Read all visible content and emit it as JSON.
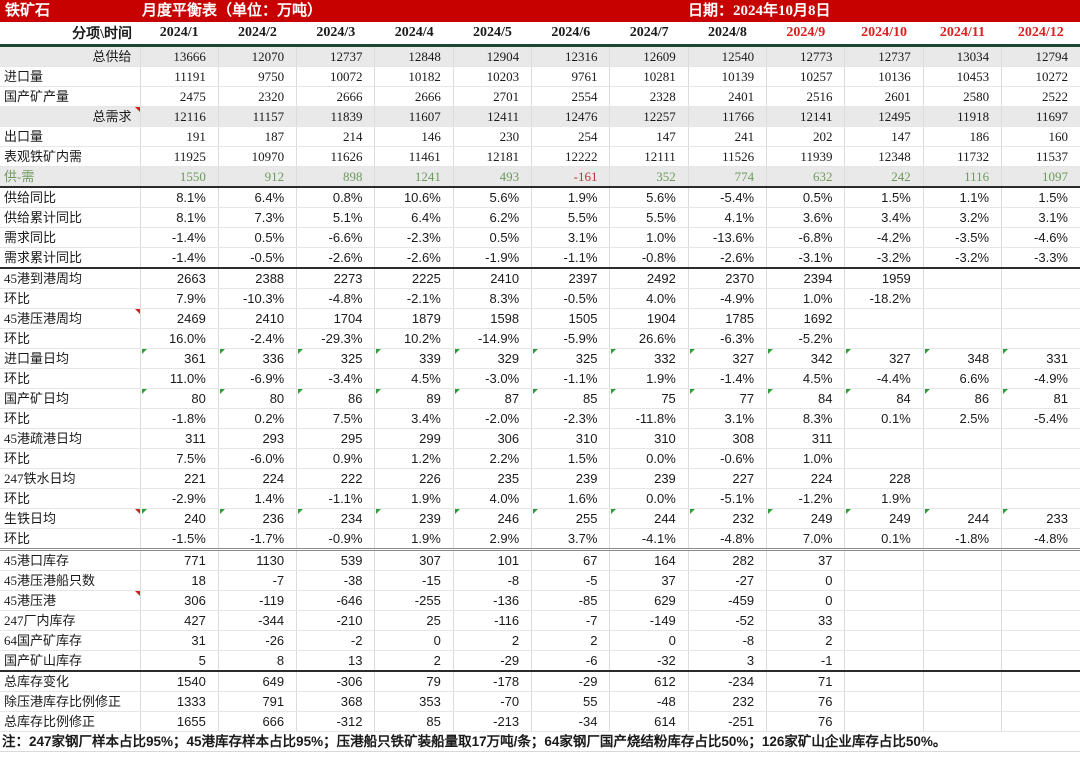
{
  "title_bar": {
    "product": "铁矿石",
    "table_title": "月度平衡表（单位：万吨）",
    "date_label": "日期：2024年10月8日"
  },
  "colors": {
    "bar_red": "#c70000",
    "month_red": "#d92121",
    "header_line": "#1e4635",
    "band_gray": "#e9e9e9",
    "green_text": "#6f9a5e",
    "negative_red": "#b03a3a"
  },
  "table": {
    "corner_label": "分项\\时间",
    "months": [
      "2024/1",
      "2024/2",
      "2024/3",
      "2024/4",
      "2024/5",
      "2024/6",
      "2024/7",
      "2024/8",
      "2024/9",
      "2024/10",
      "2024/11",
      "2024/12"
    ],
    "red_month_from_index": 8,
    "rows": [
      {
        "label": "总供给",
        "label_align": "right",
        "band": true,
        "serif_values": true,
        "values": [
          "13666",
          "12070",
          "12737",
          "12848",
          "12904",
          "12316",
          "12609",
          "12540",
          "12773",
          "12737",
          "13034",
          "12794"
        ]
      },
      {
        "label": "进口量",
        "serif_values": true,
        "values": [
          "11191",
          "9750",
          "10072",
          "10182",
          "10203",
          "9761",
          "10281",
          "10139",
          "10257",
          "10136",
          "10453",
          "10272"
        ]
      },
      {
        "label": "国产矿产量",
        "serif_values": true,
        "values": [
          "2475",
          "2320",
          "2666",
          "2666",
          "2701",
          "2554",
          "2328",
          "2401",
          "2516",
          "2601",
          "2580",
          "2522"
        ]
      },
      {
        "label": "总需求",
        "label_align": "right",
        "band": true,
        "serif_values": true,
        "comment": true,
        "values": [
          "12116",
          "11157",
          "11839",
          "11607",
          "12411",
          "12476",
          "12257",
          "11766",
          "12141",
          "12495",
          "11918",
          "11697"
        ]
      },
      {
        "label": "出口量",
        "serif_values": true,
        "values": [
          "191",
          "187",
          "214",
          "146",
          "230",
          "254",
          "147",
          "241",
          "202",
          "147",
          "186",
          "160"
        ]
      },
      {
        "label": "表观铁矿内需",
        "serif_values": true,
        "values": [
          "11925",
          "10970",
          "11626",
          "11461",
          "12181",
          "12222",
          "12111",
          "11526",
          "11939",
          "12348",
          "11732",
          "11537"
        ]
      },
      {
        "label": "供-需",
        "band": true,
        "serif_values": true,
        "green": true,
        "border_after": "dark",
        "values": [
          "1550",
          "912",
          "898",
          "1241",
          "493",
          "-161",
          "352",
          "774",
          "632",
          "242",
          "1116",
          "1097"
        ]
      },
      {
        "label": "供给同比",
        "values": [
          "8.1%",
          "6.4%",
          "0.8%",
          "10.6%",
          "5.6%",
          "1.9%",
          "5.6%",
          "-5.4%",
          "0.5%",
          "1.5%",
          "1.1%",
          "1.5%"
        ]
      },
      {
        "label": "供给累计同比",
        "values": [
          "8.1%",
          "7.3%",
          "5.1%",
          "6.4%",
          "6.2%",
          "5.5%",
          "5.5%",
          "4.1%",
          "3.6%",
          "3.4%",
          "3.2%",
          "3.1%"
        ]
      },
      {
        "label": "需求同比",
        "values": [
          "-1.4%",
          "0.5%",
          "-6.6%",
          "-2.3%",
          "0.5%",
          "3.1%",
          "1.0%",
          "-13.6%",
          "-6.8%",
          "-4.2%",
          "-3.5%",
          "-4.6%"
        ]
      },
      {
        "label": "需求累计同比",
        "border_after": "dark",
        "values": [
          "-1.4%",
          "-0.5%",
          "-2.6%",
          "-2.6%",
          "-1.9%",
          "-1.1%",
          "-0.8%",
          "-2.6%",
          "-3.1%",
          "-3.2%",
          "-3.2%",
          "-3.3%"
        ]
      },
      {
        "label": "45港到港周均",
        "values": [
          "2663",
          "2388",
          "2273",
          "2225",
          "2410",
          "2397",
          "2492",
          "2370",
          "2394",
          "1959",
          "",
          ""
        ]
      },
      {
        "label": "环比",
        "values": [
          "7.9%",
          "-10.3%",
          "-4.8%",
          "-2.1%",
          "8.3%",
          "-0.5%",
          "4.0%",
          "-4.9%",
          "1.0%",
          "-18.2%",
          "",
          ""
        ]
      },
      {
        "label": "45港压港周均",
        "comment": true,
        "values": [
          "2469",
          "2410",
          "1704",
          "1879",
          "1598",
          "1505",
          "1904",
          "1785",
          "1692",
          "",
          "",
          ""
        ]
      },
      {
        "label": "环比",
        "values": [
          "16.0%",
          "-2.4%",
          "-29.3%",
          "10.2%",
          "-14.9%",
          "-5.9%",
          "26.6%",
          "-6.3%",
          "-5.2%",
          "",
          "",
          ""
        ]
      },
      {
        "label": "进口量日均",
        "formula": true,
        "values": [
          "361",
          "336",
          "325",
          "339",
          "329",
          "325",
          "332",
          "327",
          "342",
          "327",
          "348",
          "331"
        ]
      },
      {
        "label": "环比",
        "values": [
          "11.0%",
          "-6.9%",
          "-3.4%",
          "4.5%",
          "-3.0%",
          "-1.1%",
          "1.9%",
          "-1.4%",
          "4.5%",
          "-4.4%",
          "6.6%",
          "-4.9%"
        ]
      },
      {
        "label": "国产矿日均",
        "formula": true,
        "values": [
          "80",
          "80",
          "86",
          "89",
          "87",
          "85",
          "75",
          "77",
          "84",
          "84",
          "86",
          "81"
        ]
      },
      {
        "label": "环比",
        "values": [
          "-1.8%",
          "0.2%",
          "7.5%",
          "3.4%",
          "-2.0%",
          "-2.3%",
          "-11.8%",
          "3.1%",
          "8.3%",
          "0.1%",
          "2.5%",
          "-5.4%"
        ]
      },
      {
        "label": "45港疏港日均",
        "values": [
          "311",
          "293",
          "295",
          "299",
          "306",
          "310",
          "310",
          "308",
          "311",
          "",
          "",
          ""
        ]
      },
      {
        "label": "环比",
        "values": [
          "7.5%",
          "-6.0%",
          "0.9%",
          "1.2%",
          "2.2%",
          "1.5%",
          "0.0%",
          "-0.6%",
          "1.0%",
          "",
          "",
          ""
        ]
      },
      {
        "label": "247铁水日均",
        "values": [
          "221",
          "224",
          "222",
          "226",
          "235",
          "239",
          "239",
          "227",
          "224",
          "228",
          "",
          ""
        ]
      },
      {
        "label": "环比",
        "values": [
          "-2.9%",
          "1.4%",
          "-1.1%",
          "1.9%",
          "4.0%",
          "1.6%",
          "0.0%",
          "-5.1%",
          "-1.2%",
          "1.9%",
          "",
          ""
        ]
      },
      {
        "label": "生铁日均",
        "comment": true,
        "formula": true,
        "values": [
          "240",
          "236",
          "234",
          "239",
          "246",
          "255",
          "244",
          "232",
          "249",
          "249",
          "244",
          "233"
        ]
      },
      {
        "label": "环比",
        "border_after": "double",
        "values": [
          "-1.5%",
          "-1.7%",
          "-0.9%",
          "1.9%",
          "2.9%",
          "3.7%",
          "-4.1%",
          "-4.8%",
          "7.0%",
          "0.1%",
          "-1.8%",
          "-4.8%"
        ]
      },
      {
        "label": "45港口库存",
        "values": [
          "771",
          "1130",
          "539",
          "307",
          "101",
          "67",
          "164",
          "282",
          "37",
          "",
          "",
          ""
        ]
      },
      {
        "label": "45港压港船只数",
        "values": [
          "18",
          "-7",
          "-38",
          "-15",
          "-8",
          "-5",
          "37",
          "-27",
          "0",
          "",
          "",
          ""
        ]
      },
      {
        "label": "45港压港",
        "comment": true,
        "values": [
          "306",
          "-119",
          "-646",
          "-255",
          "-136",
          "-85",
          "629",
          "-459",
          "0",
          "",
          "",
          ""
        ]
      },
      {
        "label": "247厂内库存",
        "values": [
          "427",
          "-344",
          "-210",
          "25",
          "-116",
          "-7",
          "-149",
          "-52",
          "33",
          "",
          "",
          ""
        ]
      },
      {
        "label": "64国产矿库存",
        "values": [
          "31",
          "-26",
          "-2",
          "0",
          "2",
          "2",
          "0",
          "-8",
          "2",
          "",
          "",
          ""
        ]
      },
      {
        "label": "国产矿山库存",
        "border_after": "dark",
        "values": [
          "5",
          "8",
          "13",
          "2",
          "-29",
          "-6",
          "-32",
          "3",
          "-1",
          "",
          "",
          ""
        ]
      },
      {
        "label": "总库存变化",
        "values": [
          "1540",
          "649",
          "-306",
          "79",
          "-178",
          "-29",
          "612",
          "-234",
          "71",
          "",
          "",
          ""
        ]
      },
      {
        "label": "除压港库存比例修正",
        "values": [
          "1333",
          "791",
          "368",
          "353",
          "-70",
          "55",
          "-48",
          "232",
          "76",
          "",
          "",
          ""
        ]
      },
      {
        "label": "总库存比例修正",
        "values": [
          "1655",
          "666",
          "-312",
          "85",
          "-213",
          "-34",
          "614",
          "-251",
          "76",
          "",
          "",
          ""
        ]
      }
    ]
  },
  "footnote": "注：247家钢厂样本占比95%；45港库存样本占比95%；压港船只铁矿装船量取17万吨/条；64家钢厂国产烧结粉库存占比50%；126家矿山企业库存占比50%。"
}
